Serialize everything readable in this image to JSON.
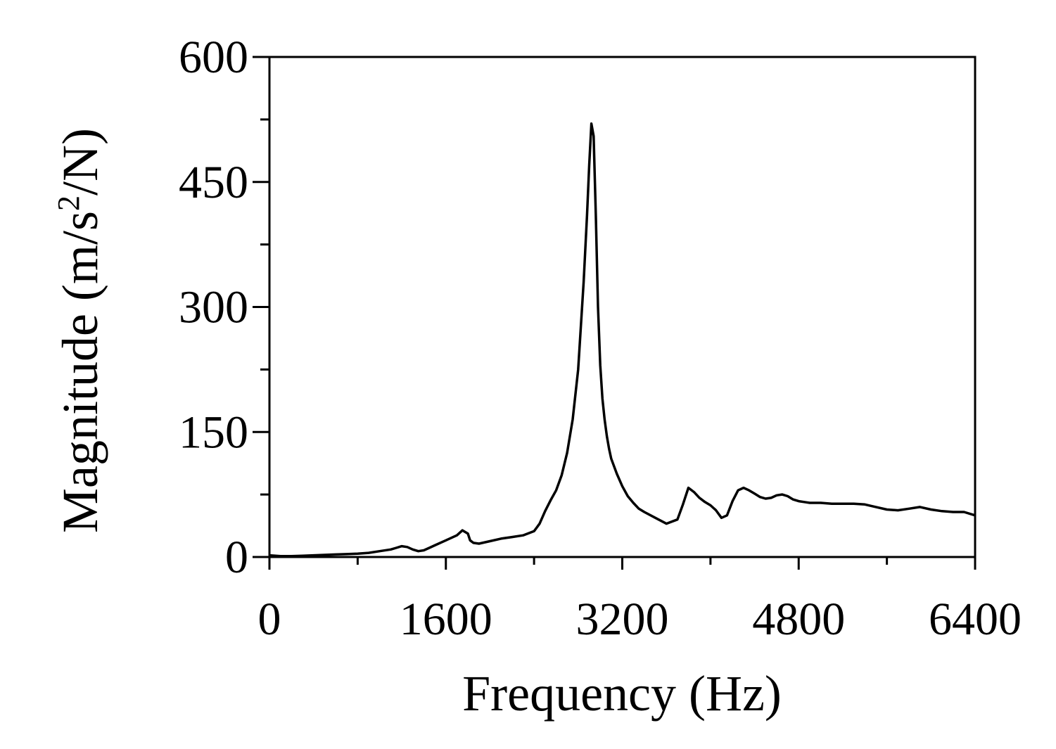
{
  "chart_data": {
    "type": "line",
    "title": "",
    "xlabel": "Frequency (Hz)",
    "ylabel": {
      "before": "Magnitude (m/s",
      "superscript": "2",
      "after": "/N)"
    },
    "xlim": [
      0,
      6400
    ],
    "ylim": [
      0,
      600
    ],
    "x_ticks": [
      0,
      1600,
      3200,
      4800,
      6400
    ],
    "x_tick_labels": [
      "0",
      "1600",
      "3200",
      "4800",
      "6400"
    ],
    "x_minor_ticks": [
      800,
      2400,
      4000,
      5600
    ],
    "y_ticks": [
      0,
      150,
      300,
      450,
      600
    ],
    "y_tick_labels": [
      "0",
      "150",
      "300",
      "450",
      "600"
    ],
    "y_minor_ticks": [
      75,
      225,
      375,
      525
    ],
    "grid": false,
    "line_color": "#000000",
    "series": [
      {
        "x": [
          0,
          100,
          200,
          300,
          400,
          500,
          600,
          700,
          800,
          900,
          1000,
          1100,
          1150,
          1200,
          1250,
          1300,
          1350,
          1400,
          1450,
          1500,
          1600,
          1700,
          1750,
          1800,
          1820,
          1850,
          1900,
          2000,
          2100,
          2200,
          2300,
          2400,
          2450,
          2500,
          2550,
          2600,
          2650,
          2700,
          2750,
          2800,
          2850,
          2880,
          2900,
          2920,
          2940,
          2960,
          2980,
          3000,
          3020,
          3040,
          3060,
          3080,
          3100,
          3150,
          3200,
          3250,
          3300,
          3350,
          3400,
          3500,
          3600,
          3700,
          3750,
          3800,
          3850,
          3900,
          3950,
          4000,
          4050,
          4100,
          4150,
          4200,
          4250,
          4300,
          4350,
          4400,
          4450,
          4500,
          4550,
          4600,
          4650,
          4700,
          4750,
          4800,
          4850,
          4900,
          5000,
          5100,
          5200,
          5300,
          5400,
          5500,
          5600,
          5700,
          5800,
          5900,
          6000,
          6100,
          6200,
          6300,
          6400
        ],
        "y": [
          2,
          1,
          1,
          1.5,
          2,
          2.5,
          3,
          3.5,
          4,
          5,
          7,
          9,
          11,
          13,
          12,
          9,
          7,
          8,
          11,
          14,
          20,
          26,
          32,
          28,
          20,
          17,
          16,
          19,
          22,
          24,
          26,
          31,
          40,
          55,
          68,
          80,
          98,
          125,
          165,
          225,
          330,
          410,
          470,
          520,
          505,
          410,
          300,
          230,
          190,
          165,
          145,
          130,
          118,
          100,
          85,
          73,
          65,
          58,
          54,
          47,
          40,
          45,
          63,
          83,
          78,
          71,
          66,
          62,
          56,
          47,
          50,
          67,
          80,
          83,
          80,
          76,
          72,
          70,
          71,
          74,
          75,
          73,
          69,
          67,
          66,
          65,
          65,
          64,
          64,
          64,
          63,
          60,
          57,
          56,
          58,
          60,
          57,
          55,
          54,
          54,
          50
        ]
      }
    ]
  }
}
